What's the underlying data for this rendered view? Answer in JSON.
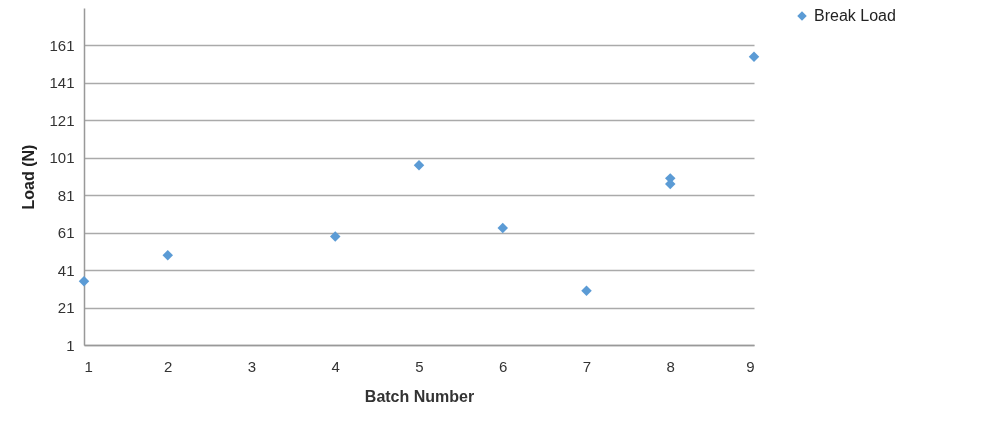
{
  "chart_data": {
    "type": "scatter",
    "xlabel": "Batch Number",
    "ylabel": "Load (N)",
    "x": [
      1,
      2,
      4,
      5,
      6,
      7,
      8,
      8,
      9
    ],
    "series": [
      {
        "name": "Break Load",
        "color": "#5b9bd5",
        "values": [
          35,
          49,
          59,
          97,
          63.5,
          30,
          90,
          87,
          155
        ]
      }
    ],
    "xlim": [
      1,
      9
    ],
    "xticks": [
      1,
      2,
      3,
      4,
      5,
      6,
      7,
      8,
      9
    ],
    "ylim": [
      1,
      181
    ],
    "yticks": [
      1,
      21,
      41,
      61,
      81,
      101,
      121,
      141,
      161
    ],
    "grid": "y",
    "legend": "right",
    "marker": "diamond"
  }
}
